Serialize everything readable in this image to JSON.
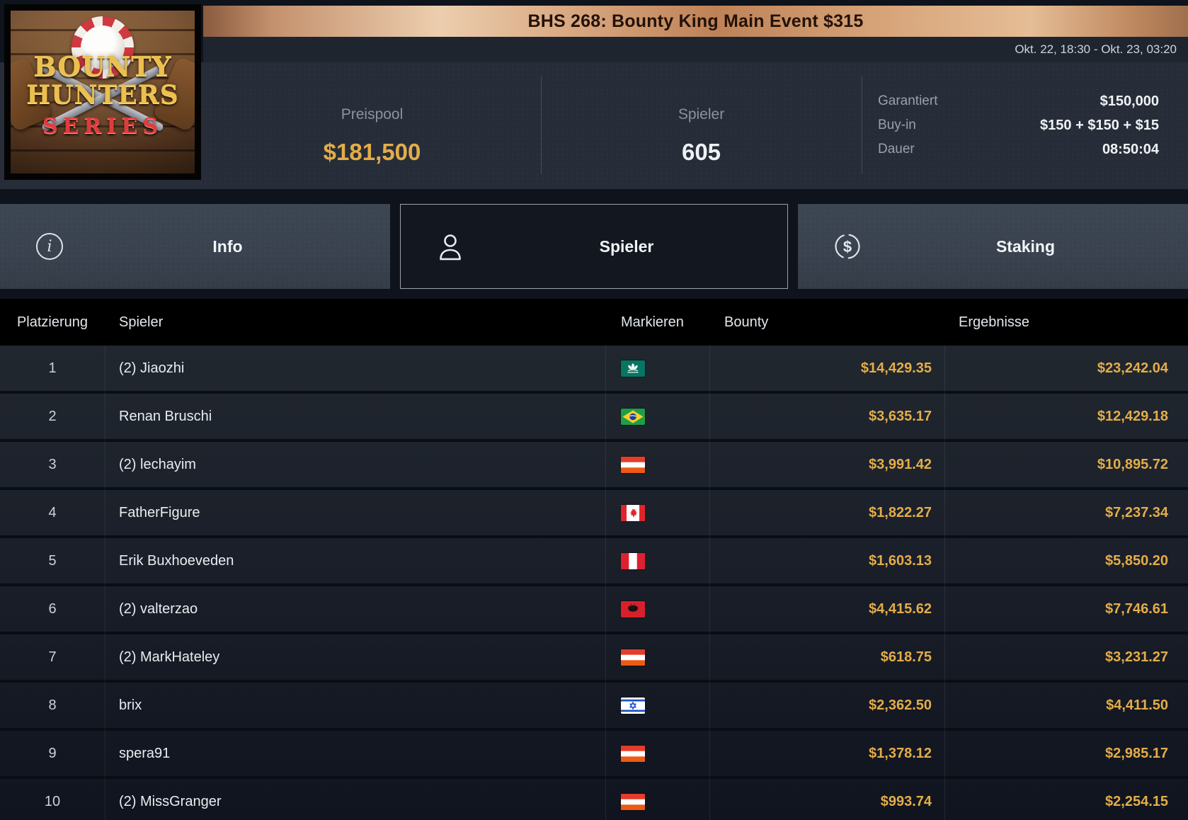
{
  "logo": {
    "title_line1": "BOUNTY",
    "title_line2": "HUNTERS",
    "title_line3": "SERIES"
  },
  "banner": {
    "title": "BHS 268: Bounty King Main Event $315"
  },
  "schedule": {
    "date_range": "Okt. 22, 18:30 - Okt. 23, 03:20"
  },
  "stats": {
    "prizepool": {
      "label": "Preispool",
      "value": "$181,500"
    },
    "players": {
      "label": "Spieler",
      "value": "605"
    },
    "details": [
      {
        "label": "Garantiert",
        "value": "$150,000"
      },
      {
        "label": "Buy-in",
        "value": "$150 + $150 + $15"
      },
      {
        "label": "Dauer",
        "value": "08:50:04"
      }
    ]
  },
  "tabs": [
    {
      "label": "Info",
      "icon": "info-icon",
      "active": false
    },
    {
      "label": "Spieler",
      "icon": "person-icon",
      "active": true
    },
    {
      "label": "Staking",
      "icon": "dollar-circle-icon",
      "active": false
    }
  ],
  "table": {
    "columns": [
      "Platzierung",
      "Spieler",
      "Markieren",
      "Bounty",
      "Ergebnisse"
    ],
    "rows": [
      {
        "rank": "1",
        "player": "(2) Jiaozhi",
        "flag": "macau",
        "bounty": "$14,429.35",
        "result": "$23,242.04"
      },
      {
        "rank": "2",
        "player": "Renan Bruschi",
        "flag": "brazil",
        "bounty": "$3,635.17",
        "result": "$12,429.18"
      },
      {
        "rank": "3",
        "player": "(2) lechayim",
        "flag": "austria",
        "bounty": "$3,991.42",
        "result": "$10,895.72"
      },
      {
        "rank": "4",
        "player": "FatherFigure",
        "flag": "canada",
        "bounty": "$1,822.27",
        "result": "$7,237.34"
      },
      {
        "rank": "5",
        "player": "Erik Buxhoeveden",
        "flag": "peru",
        "bounty": "$1,603.13",
        "result": "$5,850.20"
      },
      {
        "rank": "6",
        "player": "(2) valterzao",
        "flag": "albania",
        "bounty": "$4,415.62",
        "result": "$7,746.61"
      },
      {
        "rank": "7",
        "player": "(2) MarkHateley",
        "flag": "austria",
        "bounty": "$618.75",
        "result": "$3,231.27"
      },
      {
        "rank": "8",
        "player": "brix",
        "flag": "israel",
        "bounty": "$2,362.50",
        "result": "$4,411.50"
      },
      {
        "rank": "9",
        "player": "spera91",
        "flag": "austria",
        "bounty": "$1,378.12",
        "result": "$2,985.17"
      },
      {
        "rank": "10",
        "player": "(2) MissGranger",
        "flag": "austria",
        "bounty": "$993.74",
        "result": "$2,254.15"
      }
    ]
  },
  "colors": {
    "accent_gold": "#e3ad49",
    "banner_copper": "#d9a87e",
    "series_red": "#e23b3c",
    "tab_active_border": "#9aa2ac",
    "table_header_bg": "#000000"
  }
}
